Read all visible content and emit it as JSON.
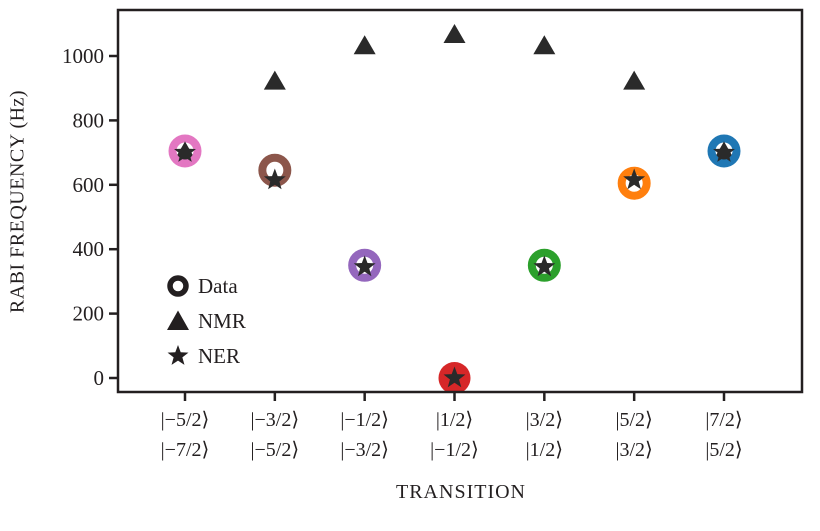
{
  "figure": {
    "background": "#ffffff",
    "frame_color": "#231f20",
    "text_color": "#231f20"
  },
  "chart_data": {
    "type": "scatter",
    "title": "",
    "xlabel": "TRANSITION",
    "ylabel": "RABI FREQUENCY (Hz)",
    "ylim": [
      -55,
      1145
    ],
    "yticks": [
      0,
      200,
      400,
      600,
      800,
      1000
    ],
    "grid": false,
    "legend_position": "lower-left-inside",
    "categories_upper": [
      "|−5/2⟩",
      "|−3/2⟩",
      "|−1/2⟩",
      "|1/2⟩",
      "|3/2⟩",
      "|5/2⟩",
      "|7/2⟩"
    ],
    "categories_lower": [
      "|−7/2⟩",
      "|−5/2⟩",
      "|−3/2⟩",
      "|−1/2⟩",
      "|1/2⟩",
      "|3/2⟩",
      "|5/2⟩"
    ],
    "legend": [
      {
        "label": "Data",
        "marker": "ring",
        "color": "#231f20"
      },
      {
        "label": "NMR",
        "marker": "triangle",
        "color": "#231f20"
      },
      {
        "label": "NER",
        "marker": "star",
        "color": "#231f20"
      }
    ],
    "series": [
      {
        "name": "NMR",
        "marker": "triangle",
        "color": "#2a2a2a",
        "values": [
          705,
          925,
          1035,
          1070,
          1035,
          925,
          705
        ]
      },
      {
        "name": "Data",
        "marker": "ring",
        "colors": [
          "#e377c2",
          "#8c564b",
          "#9467bd",
          "#d62728",
          "#2ca02c",
          "#ff7f0e",
          "#1f77b4"
        ],
        "filled": [
          false,
          false,
          false,
          true,
          false,
          false,
          false
        ],
        "values": [
          705,
          645,
          350,
          0,
          350,
          605,
          705
        ]
      },
      {
        "name": "NER",
        "marker": "star",
        "color": "#2a2a2a",
        "values": [
          700,
          615,
          345,
          0,
          345,
          615,
          700
        ]
      }
    ]
  }
}
